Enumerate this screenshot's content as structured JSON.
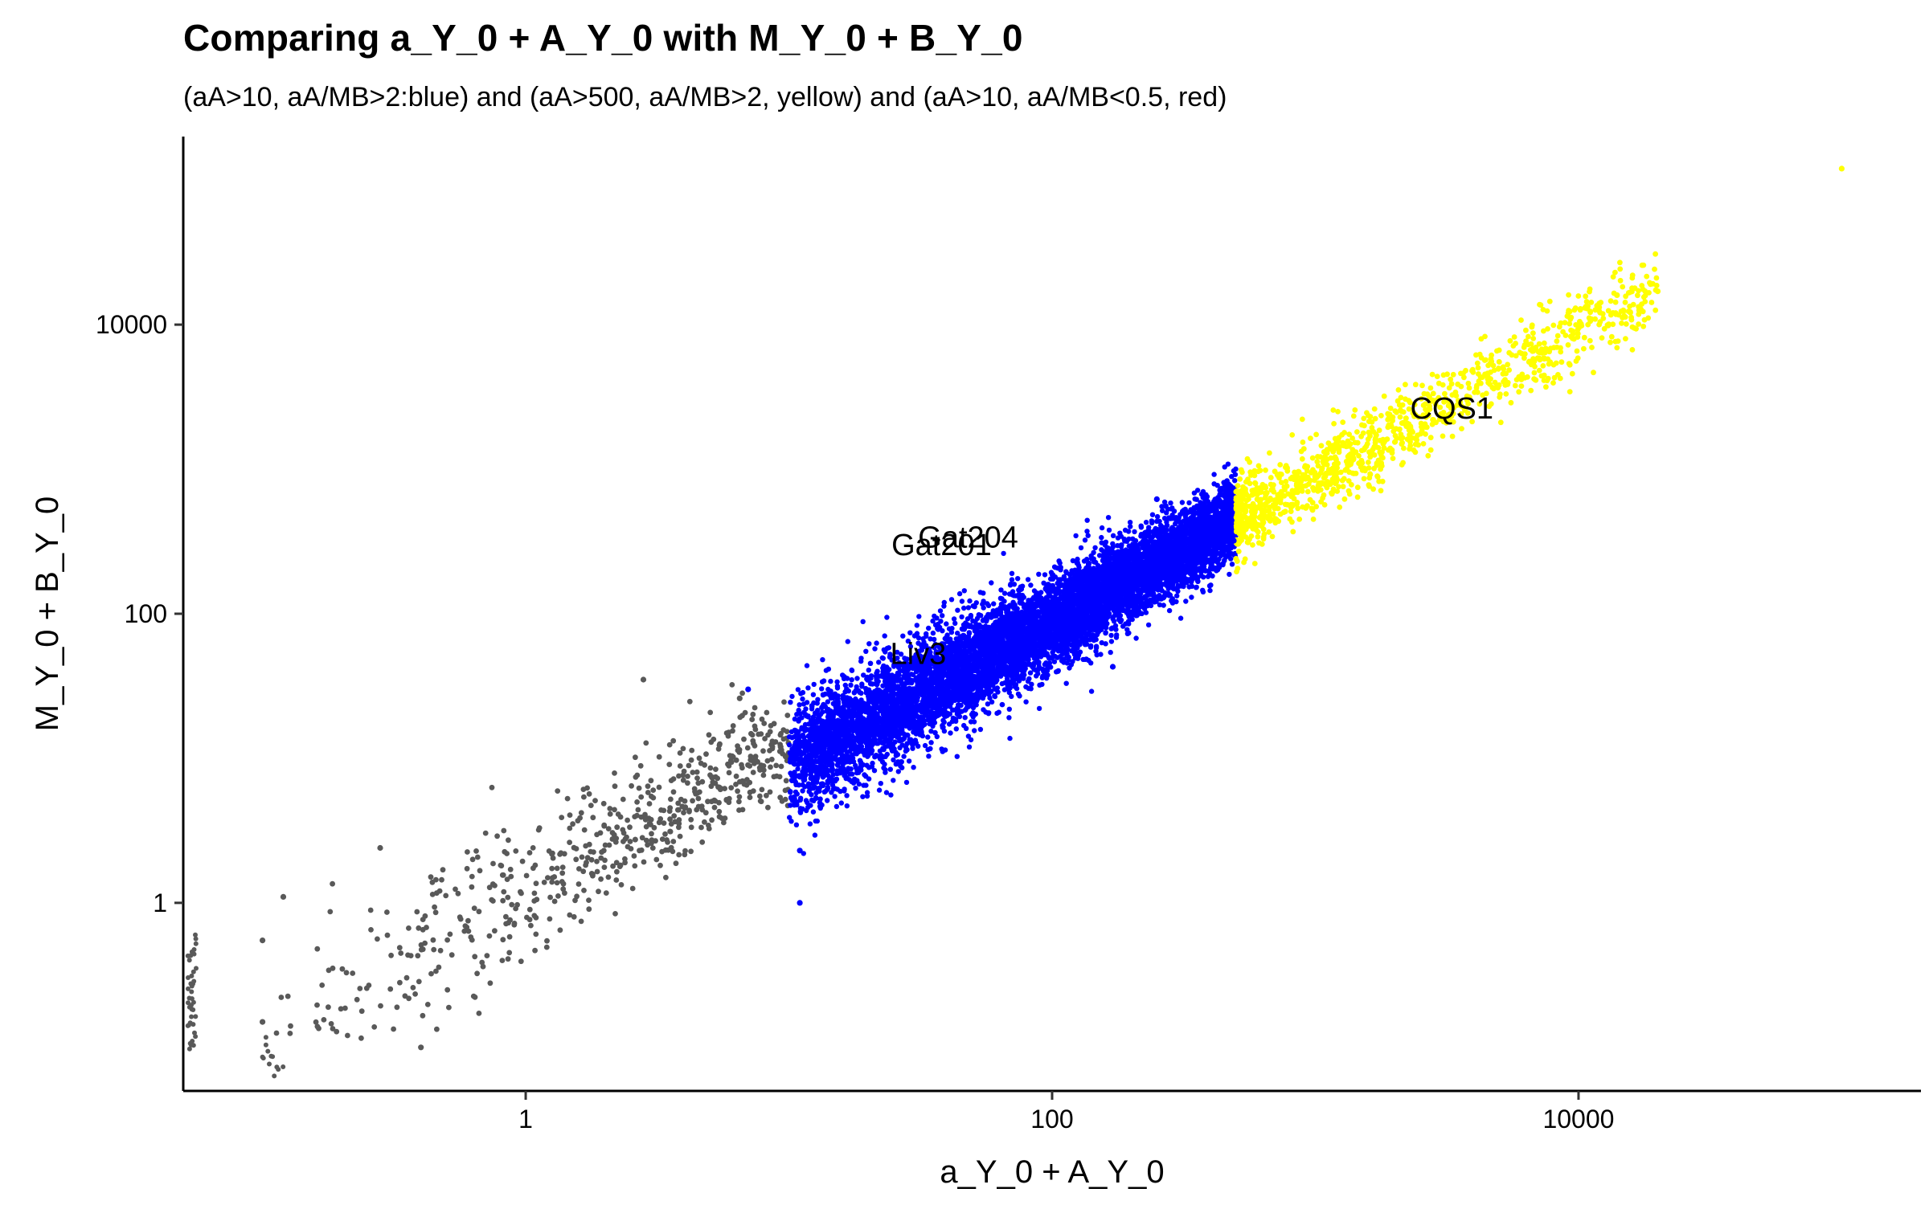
{
  "chart_data": {
    "type": "scatter",
    "title": "Comparing a_Y_0 + A_Y_0 with M_Y_0 + B_Y_0",
    "subtitle": "(aA>10, aA/MB>2:blue) and (aA>500, aA/MB>2, yellow) and (aA>10, aA/MB<0.5, red)",
    "xlabel": "a_Y_0 + A_Y_0",
    "ylabel": "M_Y_0 + B_Y_0",
    "x_scale": "log10",
    "y_scale": "log10",
    "xlim": [
      0.05,
      200000
    ],
    "ylim": [
      0.05,
      200000
    ],
    "x_ticks": [
      {
        "value": 1,
        "label": "1"
      },
      {
        "value": 100,
        "label": "100"
      },
      {
        "value": 10000,
        "label": "10000"
      }
    ],
    "y_ticks": [
      {
        "value": 1,
        "label": "1"
      },
      {
        "value": 100,
        "label": "100"
      },
      {
        "value": 10000,
        "label": "10000"
      }
    ],
    "grid": false,
    "legend": "none",
    "colors": {
      "gray": "#595959",
      "blue": "#0000ff",
      "yellow": "#ffff00"
    },
    "series_summary": [
      {
        "color": "gray",
        "x_range": [
          0.05,
          10
        ],
        "y_range": [
          0.1,
          35
        ],
        "approx_points": 700
      },
      {
        "color": "blue",
        "x_range": [
          10,
          500
        ],
        "y_range": [
          3,
          700
        ],
        "approx_points": 9000
      },
      {
        "color": "yellow",
        "x_range": [
          500,
          120000
        ],
        "y_range": [
          200,
          120000
        ],
        "approx_points": 1200
      }
    ],
    "annotations": [
      {
        "text": "Gat204",
        "x": 48,
        "y": 340
      },
      {
        "text": "Gat201",
        "x": 38,
        "y": 300
      },
      {
        "text": "Liv3",
        "x": 31,
        "y": 53
      },
      {
        "text": "CQS1",
        "x": 3300,
        "y": 2650
      }
    ],
    "outliers": [
      {
        "x": 2.8,
        "y": 35,
        "color": "gray"
      },
      {
        "x": 6.5,
        "y": 26,
        "color": "gray"
      },
      {
        "x": 9.3,
        "y": 12,
        "color": "gray"
      },
      {
        "x": 0.28,
        "y": 2.4,
        "color": "gray"
      },
      {
        "x": 0.12,
        "y": 1.1,
        "color": "gray"
      },
      {
        "x": 0.1,
        "y": 0.55,
        "color": "gray"
      },
      {
        "x": 0.1,
        "y": 0.15,
        "color": "gray"
      },
      {
        "x": 0.4,
        "y": 0.1,
        "color": "gray"
      },
      {
        "x": 11,
        "y": 2.3,
        "color": "blue"
      },
      {
        "x": 11,
        "y": 1,
        "color": "blue"
      },
      {
        "x": 7,
        "y": 30,
        "color": "blue"
      },
      {
        "x": 170,
        "y": 43,
        "color": "blue"
      },
      {
        "x": 250,
        "y": 620,
        "color": "blue"
      },
      {
        "x": 490,
        "y": 320,
        "color": "blue"
      },
      {
        "x": 100000,
        "y": 120000,
        "color": "yellow"
      },
      {
        "x": 20000,
        "y": 17000,
        "color": "yellow"
      },
      {
        "x": 14000,
        "y": 16000,
        "color": "yellow"
      },
      {
        "x": 12000,
        "y": 14000,
        "color": "yellow"
      }
    ]
  }
}
